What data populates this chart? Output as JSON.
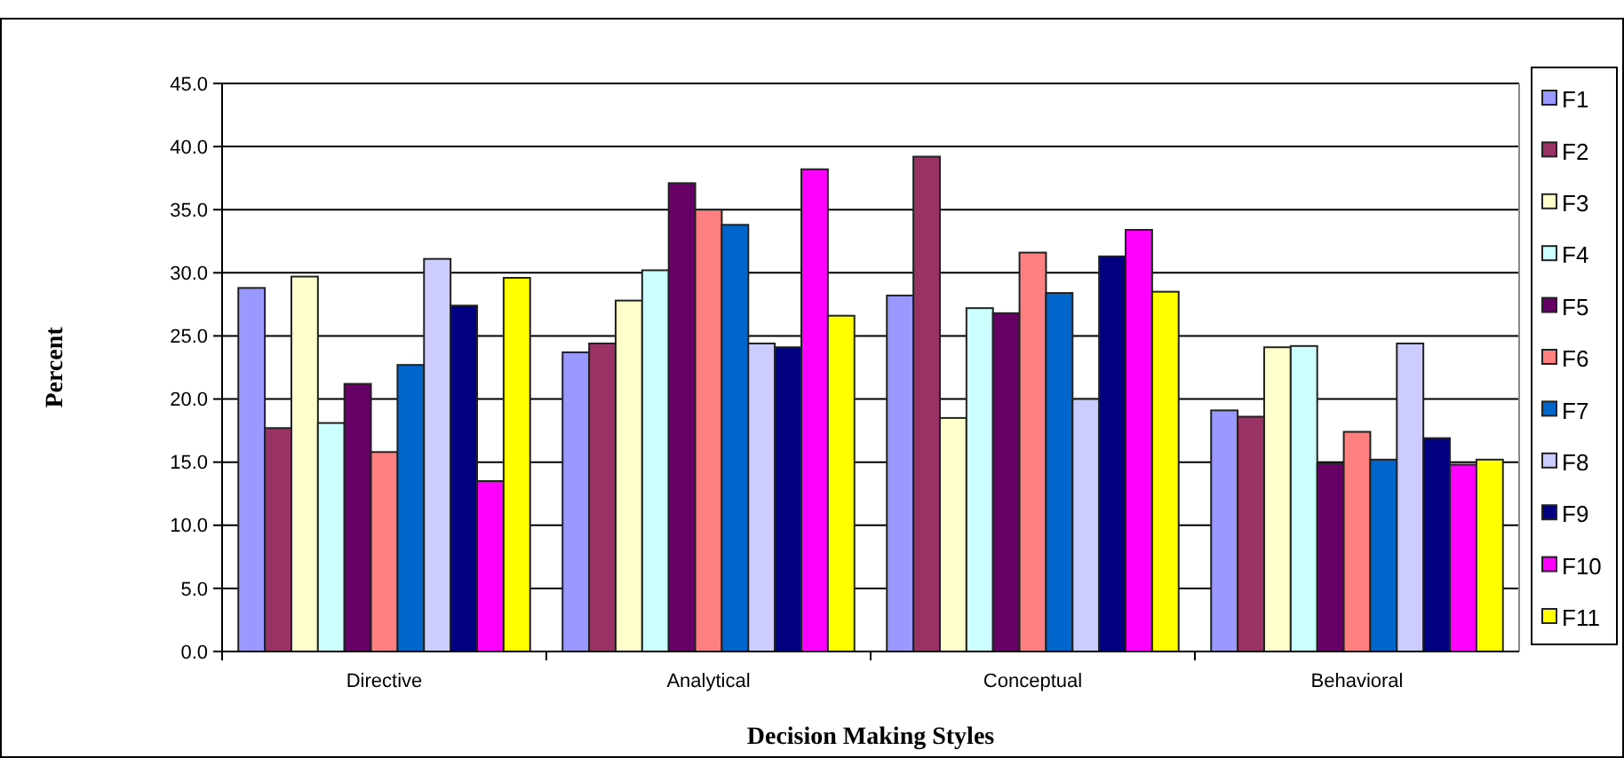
{
  "chart_data": {
    "type": "bar",
    "xlabel": "Decision Making Styles",
    "ylabel": "Percent",
    "categories": [
      "Directive",
      "Analytical",
      "Conceptual",
      "Behavioral"
    ],
    "ylim": [
      0,
      45
    ],
    "yticks": [
      {
        "value": 0,
        "label": "0.0"
      },
      {
        "value": 5,
        "label": "5.0"
      },
      {
        "value": 10,
        "label": "10.0"
      },
      {
        "value": 15,
        "label": "15.0"
      },
      {
        "value": 20,
        "label": "20.0"
      },
      {
        "value": 25,
        "label": "25.0"
      },
      {
        "value": 30,
        "label": "30.0"
      },
      {
        "value": 35,
        "label": "35.0"
      },
      {
        "value": 40,
        "label": "40.0"
      },
      {
        "value": 45,
        "label": "45.0"
      }
    ],
    "grid": "y",
    "legend": "right",
    "series": [
      {
        "name": "F1",
        "color": "#9999ff",
        "values": [
          28.8,
          23.7,
          28.2,
          19.1
        ]
      },
      {
        "name": "F2",
        "color": "#993366",
        "values": [
          17.7,
          24.4,
          39.2,
          18.6
        ]
      },
      {
        "name": "F3",
        "color": "#ffffcc",
        "values": [
          29.7,
          27.8,
          18.5,
          24.1
        ]
      },
      {
        "name": "F4",
        "color": "#ccffff",
        "values": [
          18.1,
          30.2,
          27.2,
          24.2
        ]
      },
      {
        "name": "F5",
        "color": "#660066",
        "values": [
          21.2,
          37.1,
          26.8,
          14.9
        ]
      },
      {
        "name": "F6",
        "color": "#ff8080",
        "values": [
          15.8,
          35.0,
          31.6,
          17.4
        ]
      },
      {
        "name": "F7",
        "color": "#0066cc",
        "values": [
          22.7,
          33.8,
          28.4,
          15.2
        ]
      },
      {
        "name": "F8",
        "color": "#ccccff",
        "values": [
          31.1,
          24.4,
          20.0,
          24.4
        ]
      },
      {
        "name": "F9",
        "color": "#000080",
        "values": [
          27.4,
          24.1,
          31.3,
          16.9
        ]
      },
      {
        "name": "F10",
        "color": "#ff00ff",
        "values": [
          13.5,
          38.2,
          33.4,
          14.8
        ]
      },
      {
        "name": "F11",
        "color": "#ffff00",
        "values": [
          29.6,
          26.6,
          28.5,
          15.2
        ]
      }
    ]
  }
}
